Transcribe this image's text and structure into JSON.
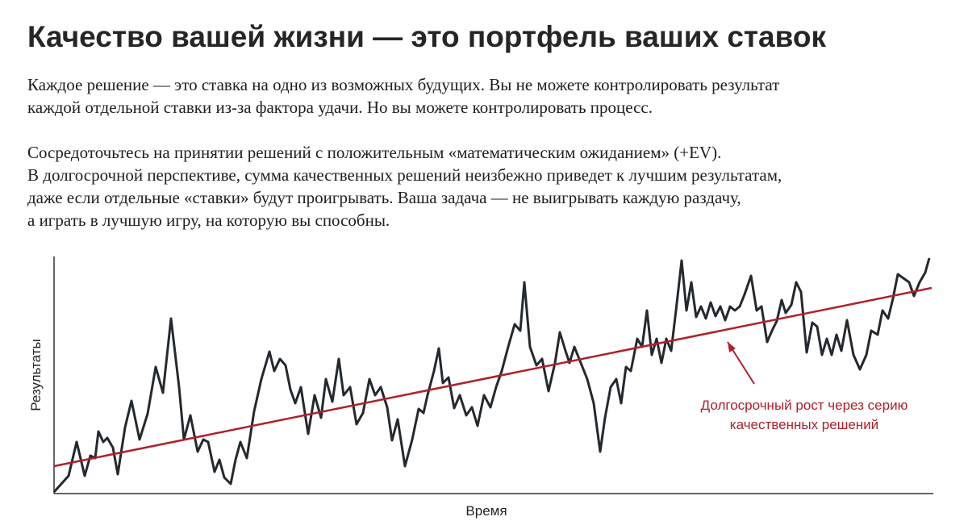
{
  "header": {
    "title": "Качество вашей жизни — это портфель ваших ставок",
    "paragraphs": [
      [
        "Каждое решение — это ставка на одно из возможных будущих. Вы не можете контролировать результат",
        "каждой отдельной ставки из-за фактора удачи. Но вы можете контролировать процесс."
      ],
      [
        "Сосредоточьтесь на принятии решений с положительным «математическим ожиданием» (+EV).",
        "В долгосрочной перспективе, сумма качественных решений неизбежно приведет к лучшим результатам,",
        "даже если отдельные «ставки» будут проигрывать. Ваша задача — не выигрывать каждую раздачу,",
        "а играть в лучшую игру, на которую вы способны."
      ]
    ]
  },
  "chart_data": {
    "type": "line",
    "xlabel": "Время",
    "ylabel": "Результаты",
    "xlim": [
      0,
      1088
    ],
    "ylim": [
      0,
      290
    ],
    "x": [
      0,
      18,
      28,
      38,
      45,
      51,
      55,
      61,
      66,
      73,
      79,
      88,
      96,
      106,
      116,
      126,
      135,
      145,
      155,
      161,
      169,
      178,
      185,
      191,
      199,
      205,
      211,
      219,
      225,
      231,
      239,
      248,
      257,
      267,
      273,
      280,
      287,
      293,
      299,
      306,
      315,
      323,
      331,
      337,
      345,
      353,
      359,
      367,
      375,
      383,
      391,
      398,
      405,
      413,
      419,
      426,
      435,
      444,
      452,
      458,
      463,
      471,
      477,
      482,
      489,
      496,
      503,
      511,
      518,
      525,
      533,
      541,
      548,
      555,
      563,
      571,
      578,
      583,
      590,
      598,
      605,
      613,
      621,
      627,
      634,
      639,
      645,
      653,
      661,
      669,
      677,
      683,
      690,
      697,
      703,
      709,
      715,
      723,
      729,
      735,
      741,
      747,
      753,
      759,
      765,
      771,
      778,
      784,
      790,
      796,
      802,
      808,
      814,
      820,
      826,
      832,
      838,
      844,
      850,
      856,
      864,
      871,
      877,
      884,
      890,
      896,
      902,
      907,
      914,
      920,
      926,
      933,
      940,
      946,
      952,
      958,
      964,
      970,
      976,
      983,
      991,
      999,
      1007,
      1013,
      1021,
      1027,
      1034,
      1040,
      1046,
      1053,
      1060,
      1066,
      1073,
      1080,
      1085
    ],
    "series": [
      {
        "color": "#24292e",
        "values": [
          0,
          20,
          62,
          20,
          45,
          42,
          75,
          62,
          67,
          55,
          22,
          80,
          113,
          65,
          97,
          155,
          123,
          215,
          130,
          65,
          95,
          50,
          65,
          62,
          25,
          40,
          18,
          10,
          40,
          62,
          42,
          100,
          140,
          174,
          150,
          165,
          157,
          127,
          110,
          130,
          72,
          120,
          92,
          140,
          112,
          165,
          120,
          130,
          84,
          98,
          140,
          120,
          130,
          105,
          64,
          90,
          32,
          65,
          103,
          98,
          120,
          150,
          178,
          135,
          142,
          104,
          120,
          95,
          105,
          82,
          120,
          105,
          130,
          150,
          180,
          208,
          200,
          260,
          180,
          157,
          165,
          125,
          160,
          198,
          175,
          160,
          180,
          160,
          140,
          110,
          50,
          92,
          130,
          140,
          110,
          155,
          150,
          190,
          180,
          225,
          170,
          190,
          160,
          190,
          175,
          225,
          287,
          225,
          260,
          217,
          230,
          215,
          235,
          218,
          230,
          213,
          230,
          225,
          230,
          245,
          268,
          225,
          230,
          186,
          200,
          212,
          238,
          222,
          232,
          260,
          248,
          173,
          210,
          205,
          170,
          190,
          170,
          195,
          175,
          213,
          170,
          152,
          170,
          200,
          195,
          225,
          215,
          240,
          270,
          265,
          260,
          243,
          260,
          272,
          290
        ]
      }
    ],
    "trend": {
      "color": "#b0202a",
      "x": [
        0,
        1088
      ],
      "values": [
        32,
        253
      ]
    },
    "annotation": {
      "color": "#b0202a",
      "lines": [
        "Долгосрочный рост через серию",
        "качественных решений"
      ]
    }
  }
}
